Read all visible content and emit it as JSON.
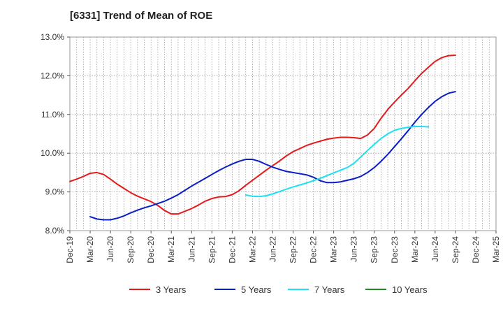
{
  "title": "[6331]  Trend of Mean of ROE",
  "chart_data": {
    "type": "line",
    "title": "[6331]  Trend of Mean of ROE",
    "xlabel": "",
    "ylabel": "",
    "x_ticks": [
      "Dec-19",
      "Mar-20",
      "Jun-20",
      "Sep-20",
      "Dec-20",
      "Mar-21",
      "Jun-21",
      "Sep-21",
      "Dec-21",
      "Mar-22",
      "Jun-22",
      "Sep-22",
      "Dec-22",
      "Mar-23",
      "Jun-23",
      "Sep-23",
      "Dec-23",
      "Mar-24",
      "Jun-24",
      "Sep-24",
      "Dec-24",
      "Mar-25"
    ],
    "y_ticks": [
      "8.0%",
      "9.0%",
      "10.0%",
      "11.0%",
      "12.0%",
      "13.0%"
    ],
    "ylim": [
      8.0,
      13.0
    ],
    "grid": "dotted vertical and horizontal",
    "legend_position": "bottom",
    "series": [
      {
        "name": "3 Years",
        "color": "#e41a1c",
        "start_index": 0,
        "values": [
          9.27,
          9.33,
          9.4,
          9.48,
          9.5,
          9.45,
          9.33,
          9.2,
          9.09,
          8.98,
          8.89,
          8.82,
          8.75,
          8.65,
          8.52,
          8.43,
          8.43,
          8.5,
          8.57,
          8.66,
          8.76,
          8.83,
          8.87,
          8.88,
          8.93,
          9.03,
          9.17,
          9.3,
          9.43,
          9.56,
          9.68,
          9.8,
          9.93,
          10.04,
          10.12,
          10.2,
          10.26,
          10.31,
          10.36,
          10.39,
          10.41,
          10.41,
          10.4,
          10.38,
          10.47,
          10.64,
          10.9,
          11.13,
          11.32,
          11.5,
          11.67,
          11.87,
          12.06,
          12.22,
          12.37,
          12.47,
          12.52,
          12.53
        ]
      },
      {
        "name": "5 Years",
        "color": "#0a1ec8",
        "start_index": 3,
        "values": [
          8.36,
          8.3,
          8.28,
          8.28,
          8.32,
          8.38,
          8.46,
          8.53,
          8.59,
          8.64,
          8.7,
          8.76,
          8.84,
          8.93,
          9.04,
          9.15,
          9.25,
          9.35,
          9.45,
          9.55,
          9.64,
          9.72,
          9.79,
          9.84,
          9.84,
          9.79,
          9.71,
          9.64,
          9.58,
          9.53,
          9.5,
          9.47,
          9.44,
          9.38,
          9.29,
          9.24,
          9.24,
          9.26,
          9.3,
          9.34,
          9.4,
          9.5,
          9.63,
          9.79,
          9.97,
          10.17,
          10.37,
          10.58,
          10.8,
          11.0,
          11.18,
          11.34,
          11.46,
          11.55,
          11.59
        ]
      },
      {
        "name": "7 Years",
        "color": "#1fe0f0",
        "start_index": 26,
        "values": [
          8.92,
          8.89,
          8.88,
          8.9,
          8.95,
          9.01,
          9.07,
          9.13,
          9.18,
          9.23,
          9.29,
          9.35,
          9.42,
          9.49,
          9.56,
          9.63,
          9.74,
          9.9,
          10.07,
          10.23,
          10.38,
          10.5,
          10.59,
          10.64,
          10.67,
          10.69,
          10.69,
          10.68
        ]
      },
      {
        "name": "10 Years",
        "color": "#1f8a1f",
        "start_index": 0,
        "values": []
      }
    ]
  }
}
